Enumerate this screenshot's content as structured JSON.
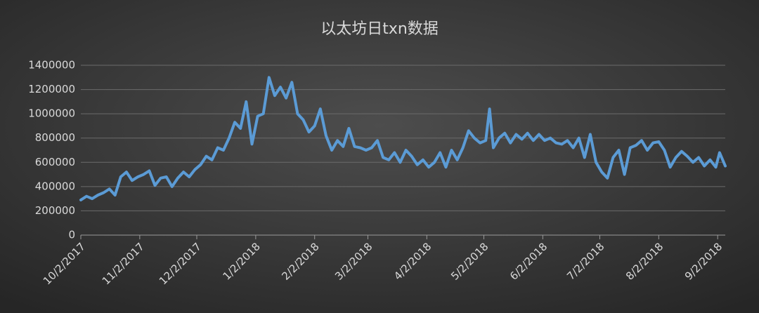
{
  "chart_data": {
    "type": "line",
    "title": "以太坊日txn数据",
    "x": [
      "10/2/2017",
      "10/5/2017",
      "10/8/2017",
      "10/11/2017",
      "10/14/2017",
      "10/17/2017",
      "10/20/2017",
      "10/23/2017",
      "10/26/2017",
      "10/29/2017",
      "11/1/2017",
      "11/4/2017",
      "11/7/2017",
      "11/10/2017",
      "11/13/2017",
      "11/16/2017",
      "11/19/2017",
      "11/22/2017",
      "11/25/2017",
      "11/28/2017",
      "12/1/2017",
      "12/4/2017",
      "12/7/2017",
      "12/10/2017",
      "12/13/2017",
      "12/16/2017",
      "12/19/2017",
      "12/22/2017",
      "12/25/2017",
      "12/28/2017",
      "12/31/2017",
      "1/3/2018",
      "1/6/2018",
      "1/9/2018",
      "1/12/2018",
      "1/15/2018",
      "1/18/2018",
      "1/21/2018",
      "1/24/2018",
      "1/27/2018",
      "1/30/2018",
      "2/2/2018",
      "2/5/2018",
      "2/8/2018",
      "2/11/2018",
      "2/14/2018",
      "2/17/2018",
      "2/20/2018",
      "2/23/2018",
      "2/26/2018",
      "3/1/2018",
      "3/4/2018",
      "3/7/2018",
      "3/10/2018",
      "3/13/2018",
      "3/16/2018",
      "3/19/2018",
      "3/22/2018",
      "3/25/2018",
      "3/28/2018",
      "3/31/2018",
      "4/3/2018",
      "4/6/2018",
      "4/9/2018",
      "4/12/2018",
      "4/15/2018",
      "4/18/2018",
      "4/21/2018",
      "4/24/2018",
      "4/27/2018",
      "4/30/2018",
      "5/3/2018",
      "5/5/2018",
      "5/7/2018",
      "5/10/2018",
      "5/13/2018",
      "5/16/2018",
      "5/19/2018",
      "5/22/2018",
      "5/25/2018",
      "5/28/2018",
      "5/31/2018",
      "6/3/2018",
      "6/6/2018",
      "6/9/2018",
      "6/12/2018",
      "6/15/2018",
      "6/18/2018",
      "6/21/2018",
      "6/24/2018",
      "6/27/2018",
      "6/30/2018",
      "7/3/2018",
      "7/6/2018",
      "7/9/2018",
      "7/12/2018",
      "7/15/2018",
      "7/18/2018",
      "7/21/2018",
      "7/24/2018",
      "7/27/2018",
      "7/30/2018",
      "8/2/2018",
      "8/5/2018",
      "8/8/2018",
      "8/11/2018",
      "8/14/2018",
      "8/17/2018",
      "8/20/2018",
      "8/23/2018",
      "8/26/2018",
      "8/29/2018",
      "9/1/2018",
      "9/3/2018",
      "9/6/2018"
    ],
    "values": [
      290000,
      320000,
      300000,
      330000,
      350000,
      380000,
      330000,
      480000,
      520000,
      450000,
      480000,
      500000,
      530000,
      410000,
      470000,
      480000,
      400000,
      470000,
      520000,
      480000,
      540000,
      580000,
      650000,
      620000,
      720000,
      700000,
      800000,
      930000,
      880000,
      1100000,
      750000,
      980000,
      1000000,
      1300000,
      1150000,
      1220000,
      1130000,
      1260000,
      1000000,
      950000,
      850000,
      900000,
      1040000,
      820000,
      700000,
      780000,
      730000,
      880000,
      730000,
      720000,
      700000,
      720000,
      780000,
      640000,
      620000,
      680000,
      600000,
      700000,
      650000,
      580000,
      620000,
      560000,
      600000,
      680000,
      560000,
      700000,
      620000,
      720000,
      860000,
      800000,
      760000,
      780000,
      1040000,
      720000,
      800000,
      840000,
      760000,
      830000,
      790000,
      840000,
      780000,
      830000,
      780000,
      800000,
      760000,
      750000,
      780000,
      720000,
      800000,
      640000,
      830000,
      600000,
      520000,
      470000,
      640000,
      700000,
      500000,
      720000,
      740000,
      780000,
      700000,
      760000,
      770000,
      700000,
      560000,
      640000,
      690000,
      650000,
      600000,
      640000,
      570000,
      620000,
      560000,
      680000,
      570000
    ],
    "color": "#5b9bd5",
    "xlim": [
      "10/2/2017",
      "9/6/2018"
    ],
    "xticks": [
      "10/2/2017",
      "11/2/2017",
      "12/2/2017",
      "1/2/2018",
      "2/2/2018",
      "3/2/2018",
      "4/2/2018",
      "5/2/2018",
      "6/2/2018",
      "7/2/2018",
      "8/2/2018",
      "9/2/2018"
    ],
    "ylim": [
      0,
      1400000
    ],
    "yticks": [
      0,
      200000,
      400000,
      600000,
      800000,
      1000000,
      1200000,
      1400000
    ],
    "grid": true
  }
}
